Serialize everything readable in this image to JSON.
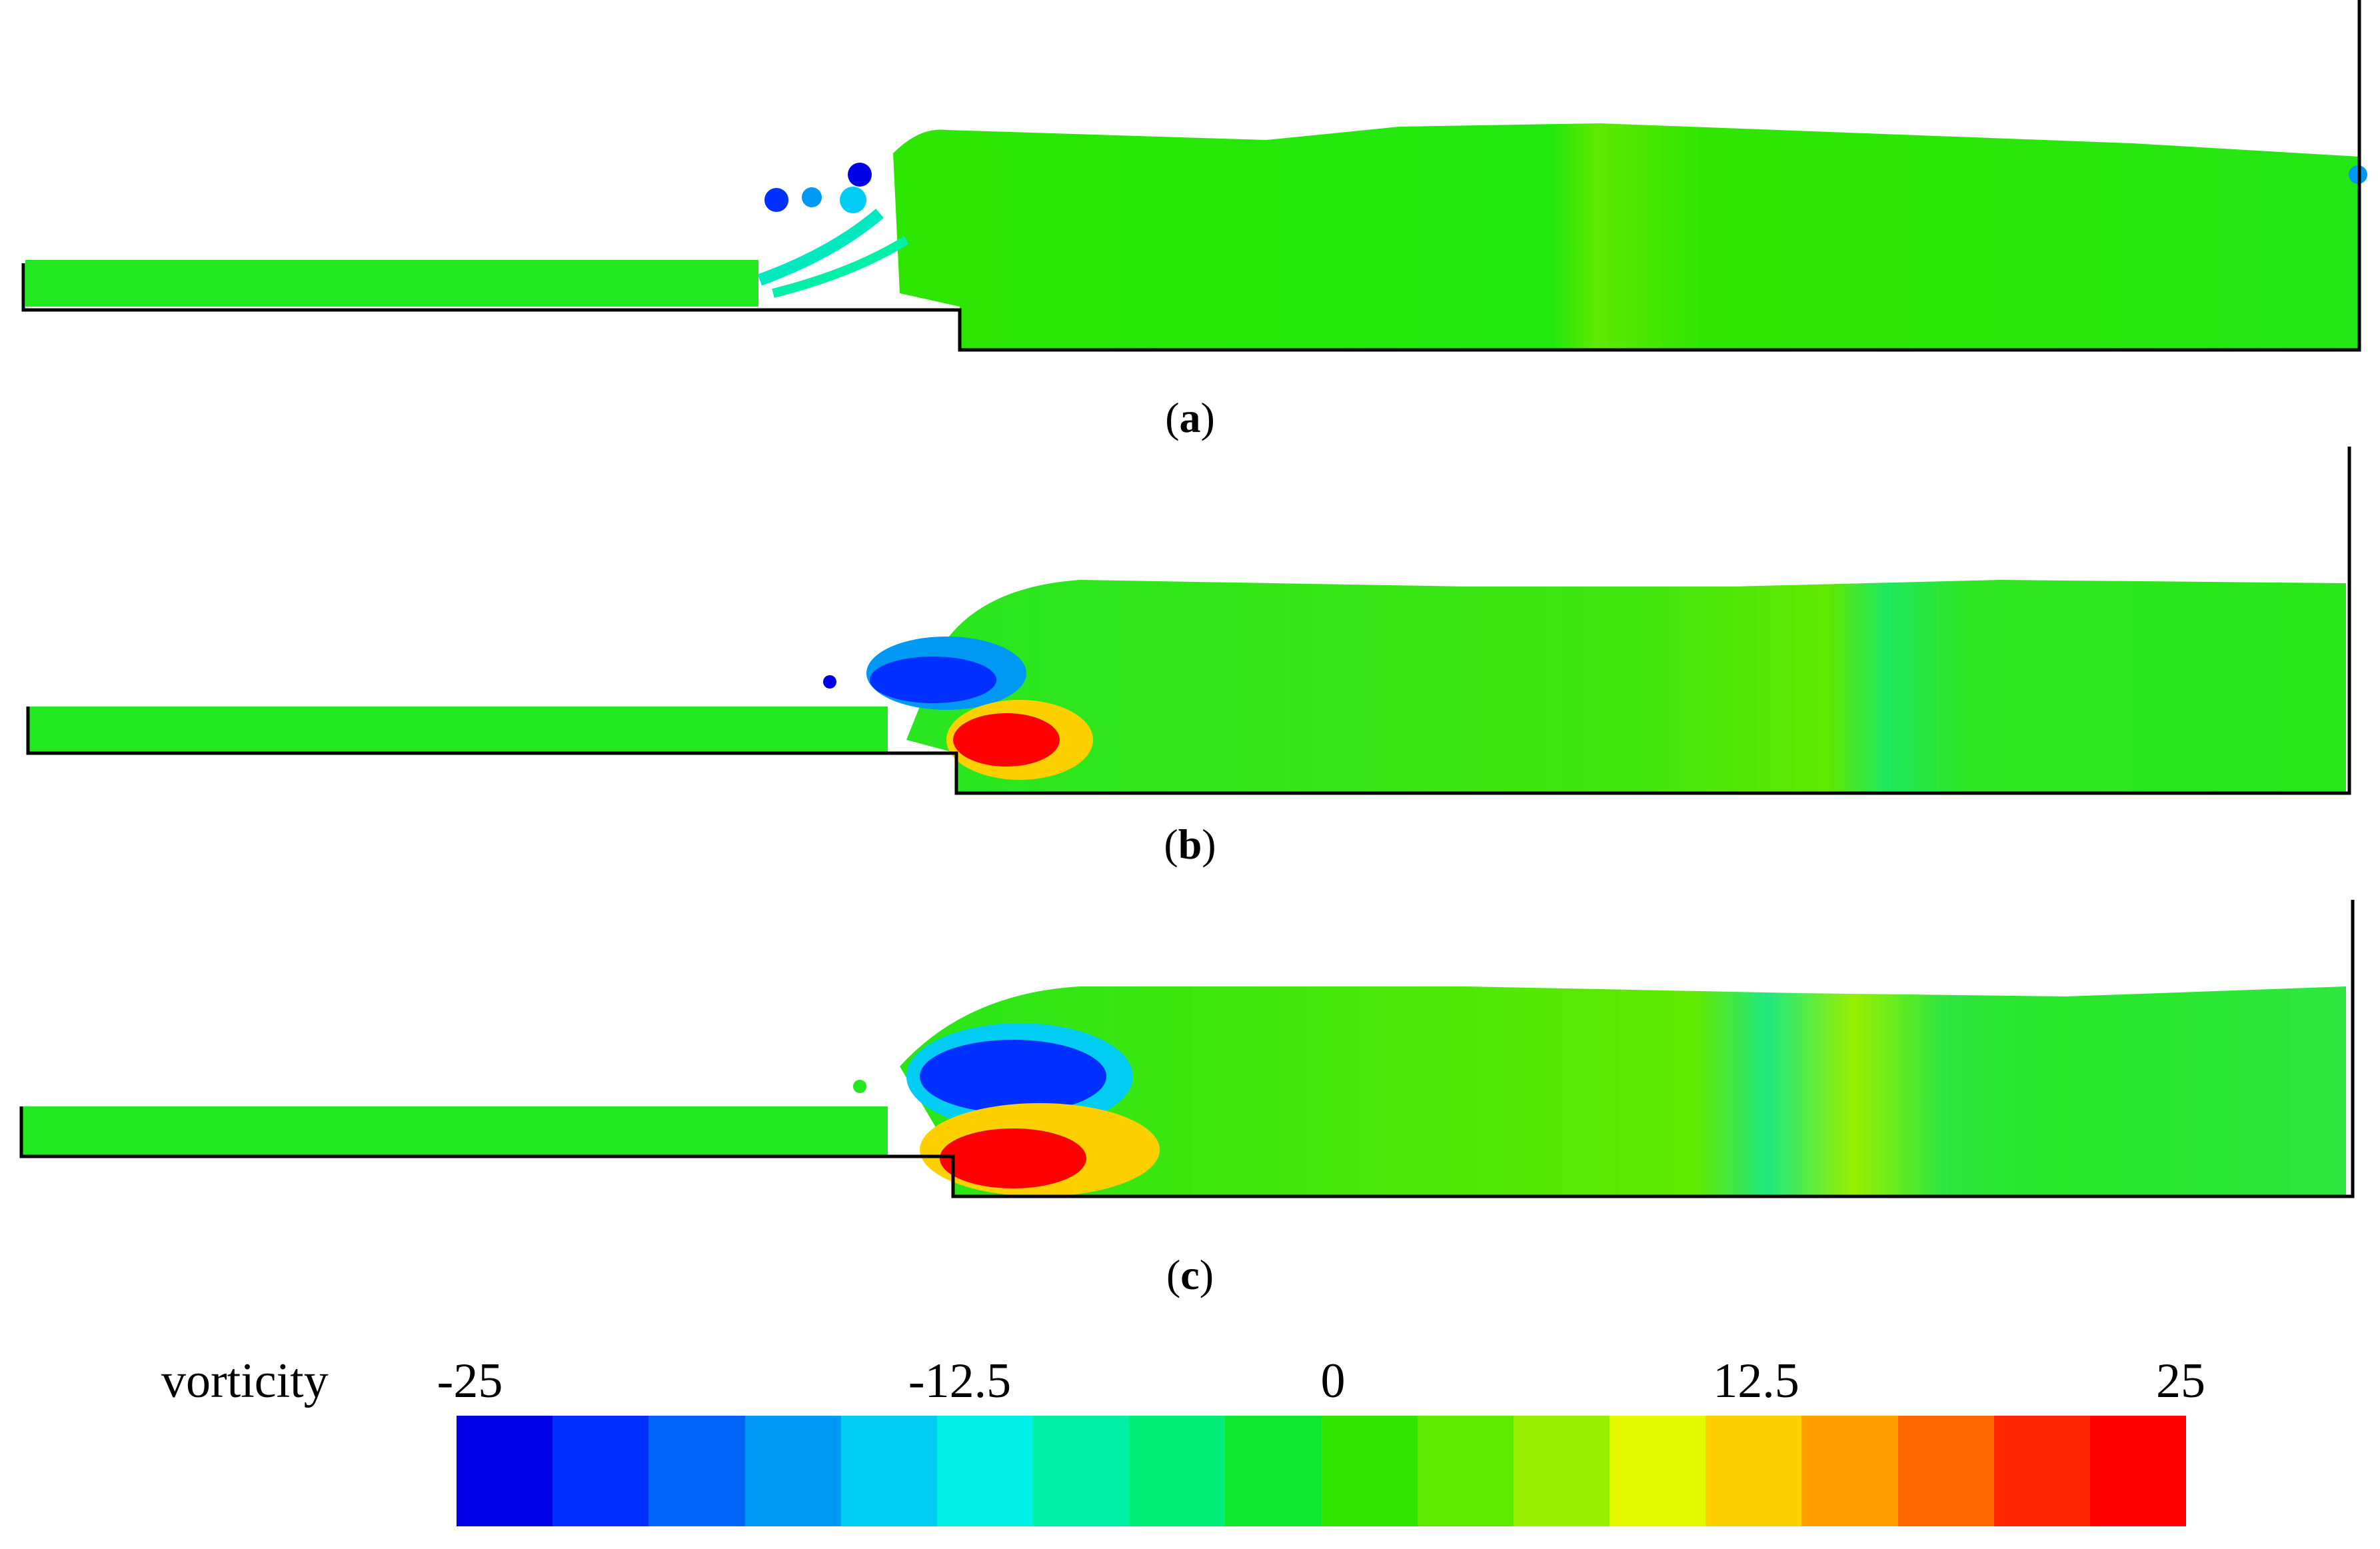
{
  "panels": [
    {
      "id": "a",
      "label_prefix": "(",
      "label": "a",
      "label_suffix": ")"
    },
    {
      "id": "b",
      "label_prefix": "(",
      "label": "b",
      "label_suffix": ")"
    },
    {
      "id": "c",
      "label_prefix": "(",
      "label": "c",
      "label_suffix": ")"
    }
  ],
  "legend": {
    "title": "vorticity",
    "ticks": [
      "-25",
      "-12.5",
      "0",
      "12.5",
      "25"
    ],
    "tick_values": [
      -25,
      -12.5,
      0,
      12.5,
      25
    ],
    "colors": [
      "#0000e6",
      "#0030ff",
      "#0064f8",
      "#0098f5",
      "#00ccf4",
      "#00f0e8",
      "#00f0a8",
      "#00ee78",
      "#10e830",
      "#30e600",
      "#60e800",
      "#98f000",
      "#e4f800",
      "#ffd000",
      "#ffa000",
      "#ff6800",
      "#ff2800",
      "#ff0000"
    ]
  }
}
